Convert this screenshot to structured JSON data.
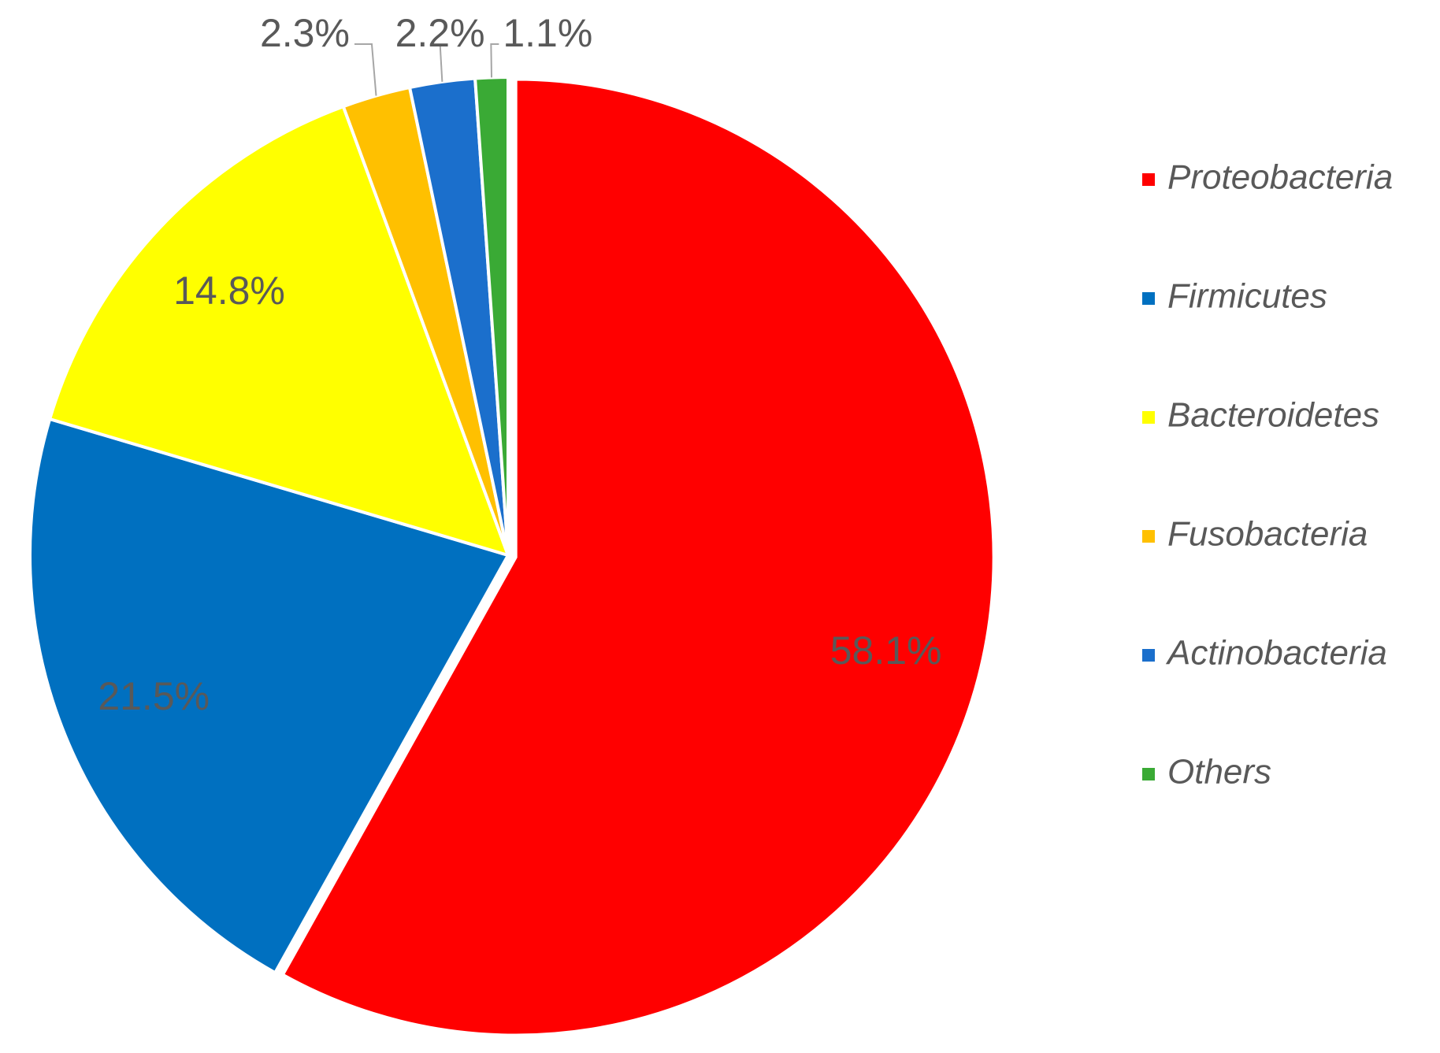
{
  "chart_data": {
    "type": "pie",
    "categories": [
      "Proteobacteria",
      "Firmicutes",
      "Bacteroidetes",
      "Fusobacteria",
      "Actinobacteria",
      "Others"
    ],
    "values": [
      58.1,
      21.5,
      14.8,
      2.3,
      2.2,
      1.1
    ],
    "value_labels": [
      "58.1%",
      "21.5%",
      "14.8%",
      "2.3%",
      "2.2%",
      "1.1%"
    ],
    "colors": [
      "#ff0000",
      "#0070c0",
      "#ffff00",
      "#ffc000",
      "#1b6fcc",
      "#3aaa35"
    ],
    "legend": "right"
  }
}
